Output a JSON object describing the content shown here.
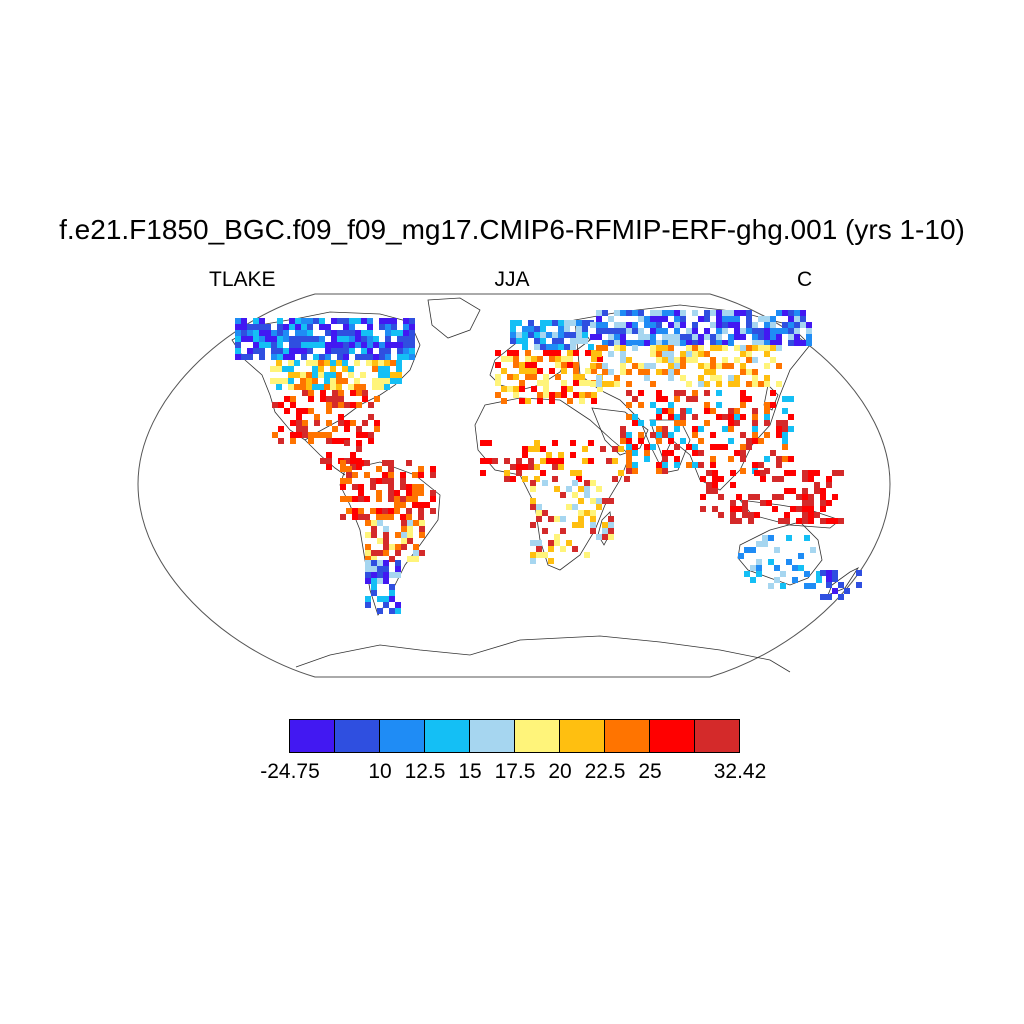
{
  "title": "f.e21.F1850_BGC.f09_f09_mg17.CMIP6-RFMIP-ERF-ghg.001 (yrs 1-10)",
  "subtitle_left": "TLAKE",
  "subtitle_center": "JJA",
  "subtitle_right": "C",
  "projection": "Robinson",
  "colorbar": {
    "colors": [
      "#4218f2",
      "#2f4fe0",
      "#1f8cf5",
      "#14bff5",
      "#a6d6f0",
      "#fff47a",
      "#ffbf10",
      "#ff7400",
      "#ff0000",
      "#d42a2a"
    ],
    "labels": [
      "-24.75",
      "10",
      "12.5",
      "15",
      "17.5",
      "20",
      "22.5",
      "25",
      "32.42"
    ]
  }
}
